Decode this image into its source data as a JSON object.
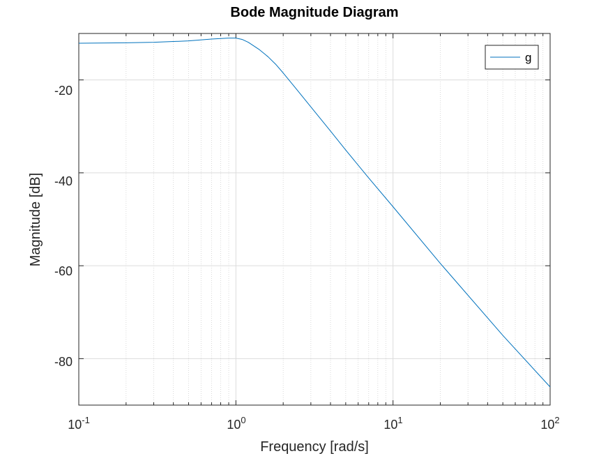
{
  "chart_data": {
    "type": "line",
    "title": "Bode Magnitude Diagram",
    "xlabel": "Frequency [rad/s]",
    "ylabel": "Magnitude [dB]",
    "xscale": "log",
    "xlim": [
      0.1,
      100
    ],
    "ylim": [
      -90,
      -10
    ],
    "x_ticks": [
      {
        "base": "10",
        "exp": "-1",
        "value": 0.1
      },
      {
        "base": "10",
        "exp": "0",
        "value": 1
      },
      {
        "base": "10",
        "exp": "1",
        "value": 10
      },
      {
        "base": "10",
        "exp": "2",
        "value": 100
      }
    ],
    "y_ticks": [
      {
        "label": "-20",
        "value": -20
      },
      {
        "label": "-40",
        "value": -40
      },
      {
        "label": "-60",
        "value": -60
      },
      {
        "label": "-80",
        "value": -80
      }
    ],
    "grid": true,
    "minor_grid": true,
    "legend": {
      "position": "top-right",
      "entries": [
        "g"
      ]
    },
    "series": [
      {
        "name": "g",
        "color": "#0072bd",
        "x": [
          0.1,
          0.2,
          0.3,
          0.5,
          0.7,
          0.9,
          1.0,
          1.1,
          1.2,
          1.4,
          1.6,
          1.8,
          2.0,
          2.5,
          3.0,
          4.0,
          5.0,
          7.0,
          10.0,
          20.0,
          50.0,
          100.0
        ],
        "y": [
          -12.1,
          -12.0,
          -11.9,
          -11.6,
          -11.2,
          -11.0,
          -11.0,
          -11.3,
          -11.9,
          -13.4,
          -15.0,
          -16.7,
          -18.5,
          -22.5,
          -25.8,
          -31.0,
          -35.1,
          -41.1,
          -47.3,
          -59.5,
          -75.0,
          -86.1
        ]
      }
    ]
  }
}
